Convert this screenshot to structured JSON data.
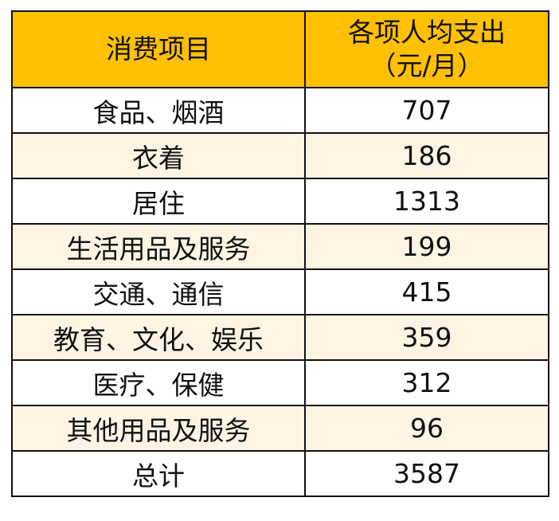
{
  "table": {
    "header": {
      "col1": "消费项目",
      "col2_line1": "各项人均支出",
      "col2_line2": "（元/月）"
    },
    "rows": [
      {
        "item": "食品、烟酒",
        "value": "707"
      },
      {
        "item": "衣着",
        "value": "186"
      },
      {
        "item": "居住",
        "value": "1313"
      },
      {
        "item": "生活用品及服务",
        "value": "199"
      },
      {
        "item": "交通、通信",
        "value": "415"
      },
      {
        "item": "教育、文化、娱乐",
        "value": "359"
      },
      {
        "item": "医疗、保健",
        "value": "312"
      },
      {
        "item": "其他用品及服务",
        "value": "96"
      },
      {
        "item": "总计",
        "value": "3587"
      }
    ]
  },
  "colors": {
    "header_bg": "#ffc000",
    "stripe_bg": "#fff3e4",
    "border": "#111111"
  }
}
